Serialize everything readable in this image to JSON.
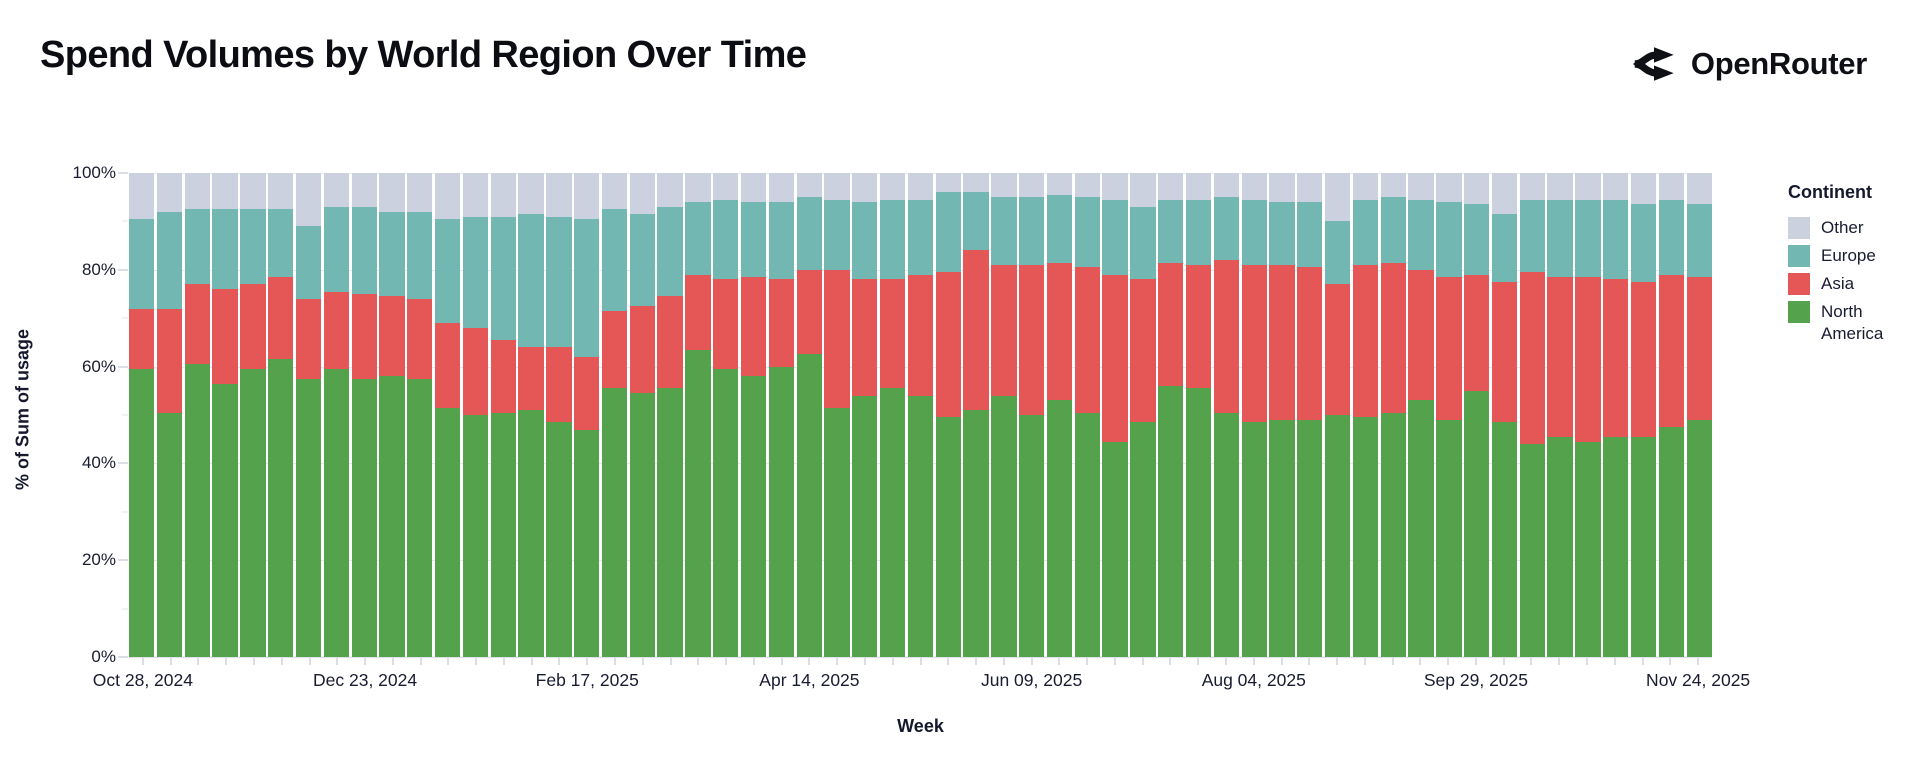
{
  "title": "Spend Volumes by World Region Over Time",
  "brand": {
    "name": "OpenRouter"
  },
  "chart_data": {
    "type": "bar",
    "variant": "stacked-100-percent",
    "title": "Spend Volumes by World Region Over Time",
    "xlabel": "Week",
    "ylabel": "% of Sum of usage",
    "ylim": [
      0,
      100
    ],
    "y_ticks": [
      0,
      20,
      40,
      60,
      80,
      100
    ],
    "y_tick_suffix": "%",
    "x_tick_every": 8,
    "x_tick_labels": [
      "Oct 28, 2024",
      "Dec 23, 2024",
      "Feb 17, 2025",
      "Apr 14, 2025",
      "Jun 09, 2025",
      "Aug 04, 2025",
      "Sep 29, 2025",
      "Nov 24, 2025"
    ],
    "grid": true,
    "legend": {
      "title": "Continent",
      "position": "right",
      "entries": [
        {
          "label": "Other",
          "color": "#ccd1df"
        },
        {
          "label": "Europe",
          "color": "#72b7b2"
        },
        {
          "label": "Asia",
          "color": "#e45756"
        },
        {
          "label": "North America",
          "color": "#54a24b"
        }
      ]
    },
    "categories": [
      "Oct 28, 2024",
      "Nov 04, 2024",
      "Nov 11, 2024",
      "Nov 18, 2024",
      "Nov 25, 2024",
      "Dec 02, 2024",
      "Dec 09, 2024",
      "Dec 16, 2024",
      "Dec 23, 2024",
      "Dec 30, 2024",
      "Jan 06, 2025",
      "Jan 13, 2025",
      "Jan 20, 2025",
      "Jan 27, 2025",
      "Feb 03, 2025",
      "Feb 10, 2025",
      "Feb 17, 2025",
      "Feb 24, 2025",
      "Mar 03, 2025",
      "Mar 10, 2025",
      "Mar 17, 2025",
      "Mar 24, 2025",
      "Mar 31, 2025",
      "Apr 07, 2025",
      "Apr 14, 2025",
      "Apr 21, 2025",
      "Apr 28, 2025",
      "May 05, 2025",
      "May 12, 2025",
      "May 19, 2025",
      "May 26, 2025",
      "Jun 02, 2025",
      "Jun 09, 2025",
      "Jun 16, 2025",
      "Jun 23, 2025",
      "Jun 30, 2025",
      "Jul 07, 2025",
      "Jul 14, 2025",
      "Jul 21, 2025",
      "Jul 28, 2025",
      "Aug 04, 2025",
      "Aug 11, 2025",
      "Aug 18, 2025",
      "Aug 25, 2025",
      "Sep 01, 2025",
      "Sep 08, 2025",
      "Sep 15, 2025",
      "Sep 22, 2025",
      "Sep 29, 2025",
      "Oct 06, 2025",
      "Oct 13, 2025",
      "Oct 20, 2025",
      "Oct 27, 2025",
      "Nov 03, 2025",
      "Nov 10, 2025",
      "Nov 17, 2025",
      "Nov 24, 2025"
    ],
    "series": [
      {
        "name": "North America",
        "color": "#54a24b",
        "values": [
          59.5,
          50.5,
          60.5,
          56.5,
          59.5,
          61.5,
          57.5,
          59.5,
          57.5,
          58,
          57.5,
          51.5,
          50,
          50.5,
          51,
          48.5,
          47,
          55.5,
          54.5,
          55.5,
          63.5,
          59.5,
          58,
          60,
          62.5,
          51.5,
          54,
          55.5,
          54,
          49.5,
          51,
          54,
          50,
          53,
          50.5,
          44.5,
          48.5,
          56,
          55.5,
          50.5,
          48.5,
          49,
          49,
          50,
          49.5,
          50.5,
          53,
          49,
          55,
          48.5,
          44,
          45.5,
          44.5,
          45.5,
          45.5,
          47.5,
          49
        ]
      },
      {
        "name": "Asia",
        "color": "#e45756",
        "values": [
          12.5,
          21.5,
          16.5,
          19.5,
          17.5,
          17,
          16.5,
          16,
          17.5,
          16.5,
          16.5,
          17.5,
          18,
          15,
          13,
          15.5,
          15,
          16,
          18,
          19,
          15.5,
          18.5,
          20.5,
          18,
          17.5,
          28.5,
          24,
          22.5,
          25,
          30,
          33,
          27,
          31,
          28.5,
          30,
          34.5,
          29.5,
          25.5,
          25.5,
          31.5,
          32.5,
          32,
          31.5,
          27,
          31.5,
          31,
          27,
          29.5,
          24,
          29,
          35.5,
          33,
          34,
          32.5,
          32,
          31.5,
          29.5
        ]
      },
      {
        "name": "Europe",
        "color": "#72b7b2",
        "values": [
          18.5,
          20,
          15.5,
          16.5,
          15.5,
          14,
          15,
          17.5,
          18,
          17.5,
          18,
          21.5,
          23,
          25.5,
          27.5,
          27,
          28.5,
          21,
          19,
          18.5,
          15,
          16.5,
          15.5,
          16,
          15,
          14.5,
          16,
          16.5,
          15.5,
          16.5,
          12,
          14,
          14,
          14,
          14.5,
          15.5,
          15,
          13,
          13.5,
          13,
          13.5,
          13,
          13.5,
          13,
          13.5,
          13.5,
          14.5,
          15.5,
          14.5,
          14,
          15,
          16,
          16,
          16.5,
          16,
          15.5,
          15
        ]
      },
      {
        "name": "Other",
        "color": "#ccd1df",
        "values": [
          9.5,
          8,
          7.5,
          7.5,
          7.5,
          7.5,
          11,
          7,
          7,
          8,
          8,
          9.5,
          9,
          9,
          8.5,
          9,
          9.5,
          7.5,
          8.5,
          7,
          6,
          5.5,
          6,
          6,
          5,
          5.5,
          6,
          5.5,
          5.5,
          4,
          4,
          5,
          5,
          4.5,
          5,
          5.5,
          7,
          5.5,
          5.5,
          5,
          5.5,
          6,
          6,
          10,
          5.5,
          5,
          5.5,
          6,
          6.5,
          8.5,
          5.5,
          5.5,
          5.5,
          5.5,
          6.5,
          5.5,
          6.5
        ]
      }
    ]
  }
}
